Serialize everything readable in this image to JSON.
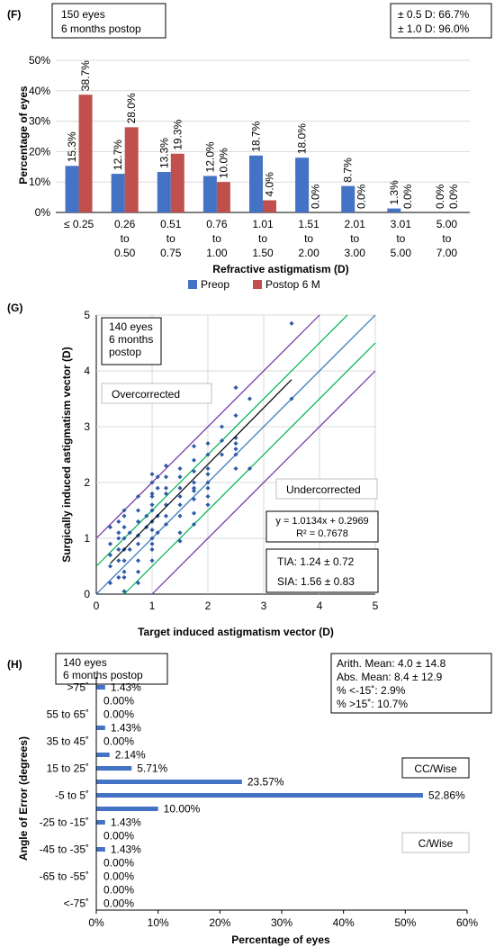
{
  "colors": {
    "preop": "#4472c4",
    "postop": "#c0504d",
    "points": "#2e5aa8",
    "grid": "#d9d9d9",
    "line_blue": "#2e75b6",
    "line_green": "#00b050",
    "line_purple": "#7030a0",
    "bar_h": "#4472c4"
  },
  "panelF": {
    "label": "(F)",
    "info_lines": [
      "150 eyes",
      "6 months postop"
    ],
    "stats_lines": [
      "± 0.5 D: 66.7%",
      "± 1.0 D: 96.0%"
    ]
  },
  "panelG": {
    "label": "(G)",
    "info_lines": [
      "140 eyes",
      "6 months",
      "postop"
    ],
    "over_label": "Overcorrected",
    "under_label": "Undercorrected",
    "eq_lines": [
      "y = 1.0134x + 0.2969",
      "R² = 0.7678"
    ],
    "tia_sia_lines": [
      "TIA: 1.24 ± 0.72",
      "SIA: 1.56 ± 0.83"
    ]
  },
  "panelH": {
    "label": "(H)",
    "info_lines": [
      "140 eyes",
      "6 months postop"
    ],
    "stats_lines": [
      "Arith. Mean: 4.0 ± 14.8",
      "Abs. Mean: 8.4 ± 12.9",
      "% <-15˚: 2.9%",
      "% >15˚: 10.7%"
    ],
    "ccwise_label": "CC/Wise",
    "cwise_label": "C/Wise"
  },
  "chart_data": [
    {
      "type": "bar",
      "xlabel": "Refractive astigmatism (D)",
      "ylabel": "Percentage of eyes",
      "ylim": [
        0,
        50
      ],
      "yticks": [
        "0%",
        "10%",
        "20%",
        "30%",
        "40%",
        "50%"
      ],
      "categories": [
        [
          "≤ 0.25"
        ],
        [
          "0.26",
          "to",
          "0.50"
        ],
        [
          "0.51",
          "to",
          "0.75"
        ],
        [
          "0.76",
          "to",
          "1.00"
        ],
        [
          "1.01",
          "to",
          "1.50"
        ],
        [
          "1.51",
          "to",
          "2.00"
        ],
        [
          "2.01",
          "to",
          "3.00"
        ],
        [
          "3.01",
          "to",
          "5.00"
        ],
        [
          "5.00",
          "to",
          "7.00"
        ]
      ],
      "legend_position": "bottom",
      "series": [
        {
          "name": "Preop",
          "values": [
            15.3,
            12.7,
            13.3,
            12.0,
            18.7,
            18.0,
            8.7,
            1.3,
            0.0
          ],
          "labels": [
            "15.3%",
            "12.7%",
            "13.3%",
            "12.0%",
            "18.7%",
            "18.0%",
            "8.7%",
            "1.3%",
            "0.0%"
          ]
        },
        {
          "name": "Postop 6 M",
          "values": [
            38.7,
            28.0,
            19.3,
            10.0,
            4.0,
            0.0,
            0.0,
            0.0,
            0.0
          ],
          "labels": [
            "38.7%",
            "28.0%",
            "19.3%",
            "10.0%",
            "4.0%",
            "0.0%",
            "0.0%",
            "0.0%",
            "0.0%"
          ]
        }
      ]
    },
    {
      "type": "scatter",
      "xlabel": "Target induced astigmatism vector (D)",
      "ylabel": "Surgically induced astigmatism vector (D)",
      "xlim": [
        0,
        5
      ],
      "ylim": [
        0,
        5
      ],
      "xticks": [
        "0",
        "1",
        "2",
        "3",
        "4",
        "5"
      ],
      "yticks": [
        "0",
        "1",
        "2",
        "3",
        "4",
        "5"
      ],
      "grid": true,
      "reference_lines": [
        {
          "offset": 0,
          "color": "blue"
        },
        {
          "offset": 0.5,
          "color": "green"
        },
        {
          "offset": -0.5,
          "color": "green"
        },
        {
          "offset": 1.0,
          "color": "purple"
        },
        {
          "offset": -1.0,
          "color": "purple"
        }
      ],
      "trendline": {
        "slope": 1.0134,
        "intercept": 0.2969,
        "x_range": [
          0.25,
          3.5
        ]
      },
      "points": [
        [
          0.25,
          0.2
        ],
        [
          0.25,
          0.5
        ],
        [
          0.25,
          0.7
        ],
        [
          0.25,
          0.9
        ],
        [
          0.25,
          1.2
        ],
        [
          0.4,
          0.3
        ],
        [
          0.4,
          0.6
        ],
        [
          0.4,
          0.8
        ],
        [
          0.4,
          1.0
        ],
        [
          0.4,
          1.1
        ],
        [
          0.4,
          1.3
        ],
        [
          0.5,
          0.05
        ],
        [
          0.5,
          0.3
        ],
        [
          0.5,
          0.4
        ],
        [
          0.5,
          0.6
        ],
        [
          0.5,
          0.8
        ],
        [
          0.5,
          1.0
        ],
        [
          0.5,
          1.2
        ],
        [
          0.5,
          1.4
        ],
        [
          0.5,
          1.5
        ],
        [
          0.6,
          0.8
        ],
        [
          0.6,
          1.1
        ],
        [
          0.75,
          0.2
        ],
        [
          0.75,
          0.4
        ],
        [
          0.75,
          0.6
        ],
        [
          0.75,
          0.9
        ],
        [
          0.75,
          1.05
        ],
        [
          0.75,
          1.3
        ],
        [
          0.75,
          1.5
        ],
        [
          0.75,
          1.75
        ],
        [
          0.9,
          1.2
        ],
        [
          0.9,
          1.4
        ],
        [
          1.0,
          0.6
        ],
        [
          1.0,
          0.8
        ],
        [
          1.0,
          0.9
        ],
        [
          1.0,
          1.0
        ],
        [
          1.0,
          1.15
        ],
        [
          1.0,
          1.3
        ],
        [
          1.0,
          1.5
        ],
        [
          1.0,
          1.6
        ],
        [
          1.0,
          1.75
        ],
        [
          1.0,
          1.8
        ],
        [
          1.0,
          2.0
        ],
        [
          1.0,
          2.15
        ],
        [
          1.1,
          1.1
        ],
        [
          1.1,
          1.4
        ],
        [
          1.1,
          1.9
        ],
        [
          1.1,
          2.1
        ],
        [
          1.25,
          1.25
        ],
        [
          1.25,
          1.4
        ],
        [
          1.25,
          1.6
        ],
        [
          1.25,
          1.8
        ],
        [
          1.25,
          1.9
        ],
        [
          1.25,
          2.1
        ],
        [
          1.25,
          2.3
        ],
        [
          1.5,
          0.95
        ],
        [
          1.5,
          1.1
        ],
        [
          1.5,
          1.4
        ],
        [
          1.5,
          1.6
        ],
        [
          1.5,
          1.75
        ],
        [
          1.5,
          1.9
        ],
        [
          1.5,
          2.1
        ],
        [
          1.5,
          2.25
        ],
        [
          1.75,
          1.25
        ],
        [
          1.75,
          1.45
        ],
        [
          1.75,
          1.7
        ],
        [
          1.75,
          1.85
        ],
        [
          1.75,
          1.9
        ],
        [
          1.75,
          2.0
        ],
        [
          1.75,
          2.2
        ],
        [
          1.75,
          2.4
        ],
        [
          1.75,
          2.65
        ],
        [
          2.0,
          1.6
        ],
        [
          2.0,
          1.75
        ],
        [
          2.0,
          1.9
        ],
        [
          2.0,
          2.0
        ],
        [
          2.0,
          2.15
        ],
        [
          2.0,
          2.25
        ],
        [
          2.0,
          2.5
        ],
        [
          2.0,
          2.7
        ],
        [
          2.25,
          2.5
        ],
        [
          2.25,
          2.75
        ],
        [
          2.25,
          3.0
        ],
        [
          2.5,
          2.25
        ],
        [
          2.5,
          2.5
        ],
        [
          2.5,
          2.6
        ],
        [
          2.5,
          2.7
        ],
        [
          2.5,
          2.8
        ],
        [
          2.5,
          3.2
        ],
        [
          2.5,
          3.7
        ],
        [
          2.75,
          2.25
        ],
        [
          2.75,
          3.5
        ],
        [
          3.5,
          3.5
        ],
        [
          3.5,
          4.85
        ]
      ]
    },
    {
      "type": "bar",
      "orientation": "horizontal",
      "xlabel": "Percentage of eyes",
      "ylabel": "Angle of Error  (degrees)",
      "xlim": [
        0,
        60
      ],
      "xticks": [
        "0%",
        "10%",
        "20%",
        "30%",
        "40%",
        "50%",
        "60%"
      ],
      "categories": [
        ">75˚",
        "55 to 65˚",
        "35 to 45˚",
        "15 to 25˚",
        "-5 to 5˚",
        "-25 to -15˚",
        "-45 to -35˚",
        "-65 to -55˚",
        "<-75˚"
      ],
      "bars": [
        {
          "value": 1.43,
          "label": "1.43%"
        },
        {
          "value": 0.0,
          "label": "0.00%"
        },
        {
          "value": 0.0,
          "label": "0.00%"
        },
        {
          "value": 1.43,
          "label": "1.43%"
        },
        {
          "value": 0.0,
          "label": "0.00%"
        },
        {
          "value": 2.14,
          "label": "2.14%"
        },
        {
          "value": 5.71,
          "label": "5.71%"
        },
        {
          "value": 23.57,
          "label": "23.57%"
        },
        {
          "value": 52.86,
          "label": "52.86%"
        },
        {
          "value": 10.0,
          "label": "10.00%"
        },
        {
          "value": 1.43,
          "label": "1.43%"
        },
        {
          "value": 0.0,
          "label": "0.00%"
        },
        {
          "value": 1.43,
          "label": "1.43%"
        },
        {
          "value": 0.0,
          "label": "0.00%"
        },
        {
          "value": 0.0,
          "label": "0.00%"
        },
        {
          "value": 0.0,
          "label": "0.00%"
        },
        {
          "value": 0.0,
          "label": "0.00%"
        }
      ]
    }
  ]
}
